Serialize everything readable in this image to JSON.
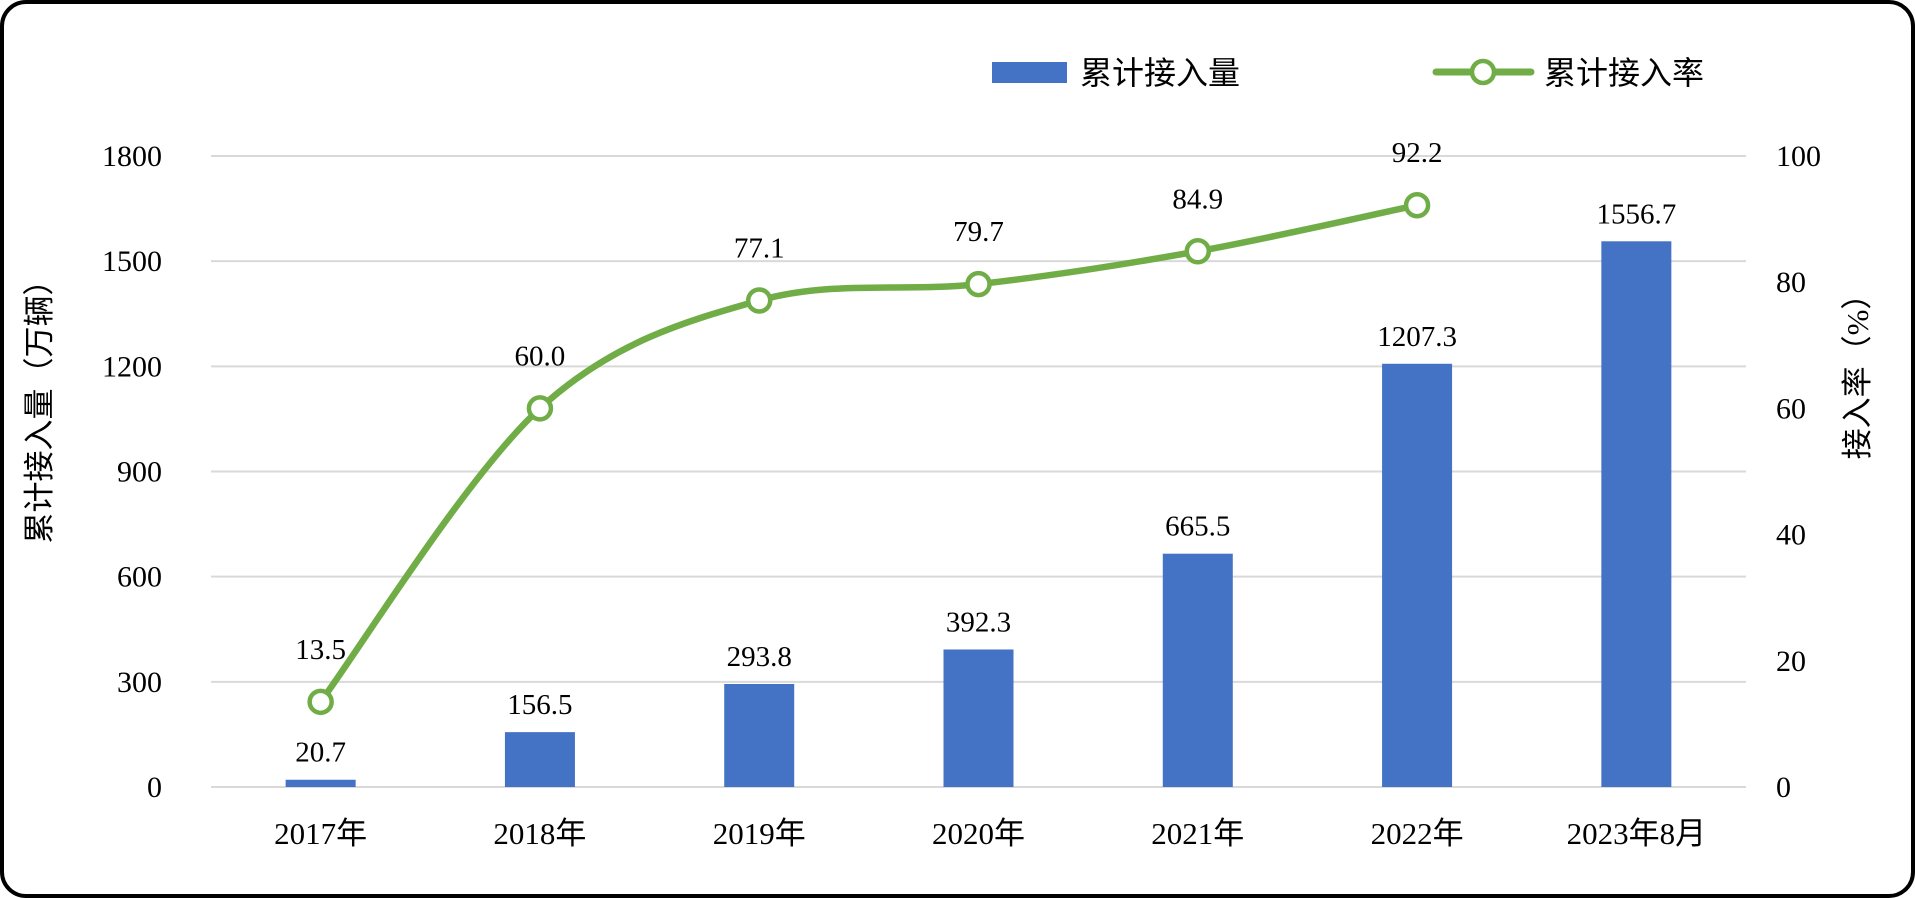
{
  "chart_data": {
    "type": "bar+line combo",
    "categories": [
      "2017年",
      "2018年",
      "2019年",
      "2020年",
      "2021年",
      "2022年",
      "2023年8月"
    ],
    "series": [
      {
        "name": "累计接入量",
        "type": "bar",
        "axis": "left",
        "color": "#4472C4",
        "values": [
          20.7,
          156.5,
          293.8,
          392.3,
          665.5,
          1207.3,
          1556.7
        ],
        "labels": [
          "20.7",
          "156.5",
          "293.8",
          "392.3",
          "665.5",
          "1207.3",
          "1556.7"
        ]
      },
      {
        "name": "累计接入率",
        "type": "line",
        "axis": "right",
        "color": "#70AD47",
        "marker": "circle-open",
        "values": [
          13.5,
          60.0,
          77.1,
          79.7,
          84.9,
          92.2
        ],
        "labels": [
          "13.5",
          "60.0",
          "77.1",
          "79.7",
          "84.9",
          "92.2"
        ]
      }
    ],
    "left_axis": {
      "title": "累计接入量（万辆）",
      "min": 0,
      "max": 1800,
      "step": 300,
      "ticks": [
        "0",
        "300",
        "600",
        "900",
        "1200",
        "1500",
        "1800"
      ]
    },
    "right_axis": {
      "title": "接入率（%）",
      "min": 0,
      "max": 100,
      "step": 20,
      "ticks": [
        "0",
        "20",
        "40",
        "60",
        "80",
        "100"
      ]
    },
    "legend": [
      "累计接入量",
      "累计接入率"
    ],
    "legend_position": "top",
    "grid": "horizontal",
    "grid_color": "#D9D9D9",
    "background": "#FFFFFF"
  }
}
